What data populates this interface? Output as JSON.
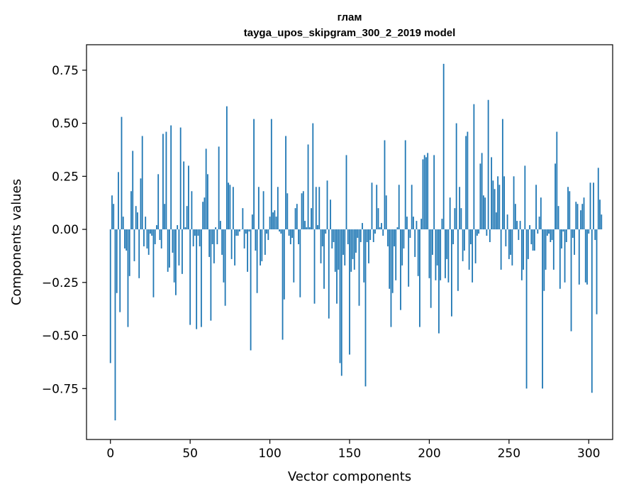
{
  "chart_data": {
    "type": "bar",
    "title_line1": "глам",
    "title_line2": "tayga_upos_skipgram_300_2_2019 model",
    "xlabel": "Vector components",
    "ylabel": "Components values",
    "xlim": [
      -15,
      315
    ],
    "ylim": [
      -0.99,
      0.87
    ],
    "xticks": [
      0,
      50,
      100,
      150,
      200,
      250,
      300
    ],
    "xtick_labels": [
      "0",
      "50",
      "100",
      "150",
      "200",
      "250",
      "300"
    ],
    "yticks": [
      -0.75,
      -0.5,
      -0.25,
      0.0,
      0.25,
      0.5,
      0.75
    ],
    "ytick_labels": [
      "−0.75",
      "−0.50",
      "−0.25",
      "0.00",
      "0.25",
      "0.50",
      "0.75"
    ],
    "grid": false,
    "bar_color": "#1f77b4",
    "values": [
      -0.63,
      0.16,
      0.12,
      -0.9,
      -0.3,
      0.27,
      -0.39,
      0.53,
      0.06,
      -0.09,
      -0.1,
      -0.46,
      -0.22,
      0.18,
      0.37,
      -0.15,
      0.11,
      0.08,
      -0.23,
      0.24,
      0.44,
      -0.08,
      0.06,
      -0.09,
      -0.12,
      -0.02,
      -0.03,
      -0.32,
      -0.07,
      0.02,
      0.26,
      -0.05,
      -0.09,
      0.45,
      0.12,
      0.46,
      -0.2,
      -0.18,
      0.49,
      -0.11,
      -0.25,
      -0.31,
      0.02,
      -0.17,
      0.48,
      -0.21,
      0.32,
      0.01,
      0.11,
      0.3,
      -0.45,
      0.18,
      -0.08,
      -0.03,
      -0.47,
      -0.03,
      -0.08,
      -0.46,
      0.13,
      0.15,
      0.38,
      0.26,
      -0.13,
      -0.43,
      -0.07,
      -0.16,
      0.01,
      -0.07,
      0.39,
      0.04,
      -0.12,
      -0.25,
      -0.36,
      0.58,
      0.22,
      0.21,
      -0.14,
      0.2,
      -0.17,
      -0.03,
      -0.03,
      -0.01,
      0.0,
      0.1,
      -0.09,
      -0.02,
      -0.2,
      -0.01,
      -0.57,
      0.07,
      0.52,
      -0.1,
      -0.3,
      0.2,
      -0.17,
      -0.15,
      0.18,
      -0.12,
      -0.02,
      -0.05,
      0.06,
      0.52,
      0.08,
      0.09,
      0.06,
      0.2,
      -0.01,
      -0.02,
      -0.52,
      -0.33,
      0.44,
      0.17,
      -0.03,
      -0.07,
      -0.04,
      -0.25,
      0.1,
      0.12,
      -0.07,
      -0.32,
      0.17,
      0.18,
      0.04,
      0.01,
      0.4,
      0.01,
      0.1,
      0.5,
      -0.35,
      0.2,
      0.02,
      0.2,
      -0.16,
      -0.08,
      -0.28,
      -0.02,
      0.23,
      -0.42,
      0.14,
      -0.09,
      -0.06,
      -0.2,
      -0.35,
      -0.19,
      -0.63,
      -0.69,
      -0.12,
      -0.17,
      0.35,
      -0.07,
      -0.59,
      -0.2,
      -0.14,
      -0.19,
      -0.11,
      -0.04,
      -0.36,
      -0.06,
      0.03,
      -0.25,
      -0.74,
      -0.06,
      -0.16,
      -0.05,
      0.22,
      -0.06,
      -0.02,
      0.21,
      0.1,
      0.01,
      0.03,
      -0.03,
      0.42,
      0.16,
      -0.08,
      -0.28,
      -0.46,
      -0.3,
      -0.08,
      -0.24,
      0.01,
      0.21,
      -0.38,
      -0.17,
      -0.09,
      0.42,
      0.06,
      -0.27,
      -0.04,
      0.21,
      0.06,
      -0.13,
      0.04,
      -0.22,
      -0.46,
      0.05,
      0.33,
      0.35,
      0.34,
      0.36,
      -0.23,
      -0.37,
      -0.12,
      0.35,
      -0.24,
      -0.17,
      -0.49,
      -0.24,
      0.05,
      0.78,
      -0.23,
      -0.14,
      -0.25,
      0.15,
      -0.41,
      -0.07,
      0.1,
      0.5,
      -0.29,
      0.2,
      0.1,
      -0.15,
      -0.1,
      0.44,
      0.46,
      -0.19,
      -0.07,
      -0.25,
      0.59,
      -0.16,
      -0.03,
      -0.02,
      0.31,
      0.36,
      0.16,
      0.15,
      -0.03,
      0.61,
      -0.06,
      0.34,
      0.23,
      0.19,
      0.08,
      0.25,
      0.21,
      -0.19,
      0.52,
      0.25,
      -0.08,
      0.07,
      -0.14,
      -0.12,
      -0.17,
      0.25,
      0.12,
      0.04,
      -0.05,
      0.04,
      -0.24,
      -0.19,
      0.3,
      -0.75,
      -0.14,
      0.02,
      -0.07,
      -0.1,
      -0.1,
      0.21,
      -0.02,
      0.06,
      0.15,
      -0.75,
      -0.29,
      -0.19,
      -0.03,
      -0.02,
      -0.06,
      -0.05,
      -0.19,
      0.31,
      0.46,
      0.11,
      -0.28,
      -0.09,
      -0.01,
      -0.25,
      -0.06,
      0.2,
      0.18,
      -0.48,
      -0.04,
      -0.12,
      0.13,
      0.12,
      -0.26,
      0.09,
      0.12,
      0.15,
      -0.25,
      -0.26,
      -0.02,
      0.22,
      -0.77,
      0.22,
      -0.05,
      -0.4,
      0.29,
      0.14,
      0.07
    ]
  }
}
